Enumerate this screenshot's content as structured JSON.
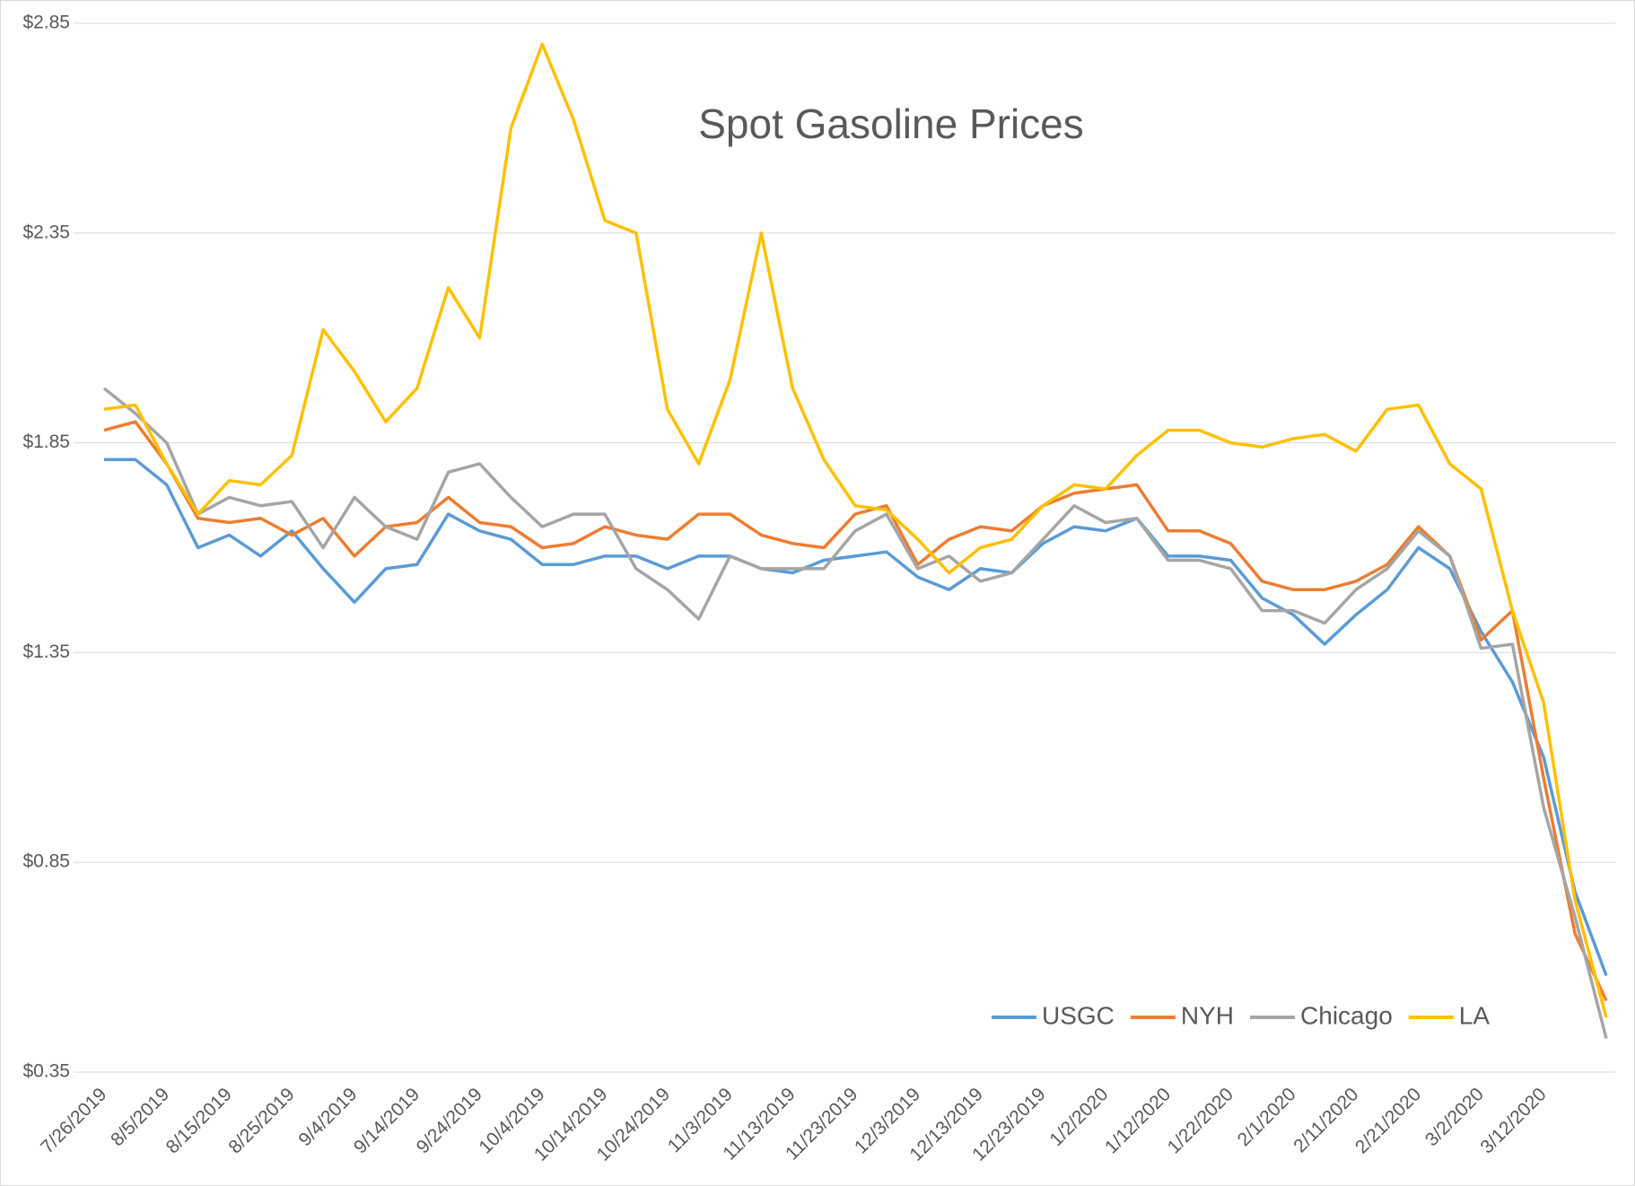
{
  "chart_data": {
    "type": "line",
    "title": "Spot Gasoline Prices",
    "categories": [
      "7/26/2019",
      null,
      "8/5/2019",
      null,
      "8/15/2019",
      null,
      "8/25/2019",
      null,
      "9/4/2019",
      null,
      "9/14/2019",
      null,
      "9/24/2019",
      null,
      "10/4/2019",
      null,
      "10/14/2019",
      null,
      "10/24/2019",
      null,
      "11/3/2019",
      null,
      "11/13/2019",
      null,
      "11/23/2019",
      null,
      "12/3/2019",
      null,
      "12/13/2019",
      null,
      "12/23/2019",
      null,
      "1/2/2020",
      null,
      "1/12/2020",
      null,
      "1/22/2020",
      null,
      "2/1/2020",
      null,
      "2/11/2020",
      null,
      "2/21/2020",
      null,
      "3/2/2020",
      null,
      "3/12/2020",
      null,
      null
    ],
    "series": [
      {
        "name": "USGC",
        "color": "#5b9bd5",
        "values": [
          1.81,
          1.81,
          1.75,
          1.6,
          1.63,
          1.58,
          1.64,
          1.55,
          1.47,
          1.55,
          1.56,
          1.68,
          1.64,
          1.62,
          1.56,
          1.56,
          1.58,
          1.58,
          1.55,
          1.58,
          1.58,
          1.55,
          1.54,
          1.57,
          1.58,
          1.59,
          1.53,
          1.5,
          1.55,
          1.54,
          1.61,
          1.65,
          1.64,
          1.67,
          1.58,
          1.58,
          1.57,
          1.48,
          1.44,
          1.37,
          1.44,
          1.5,
          1.6,
          1.55,
          1.4,
          1.28,
          1.1,
          0.78,
          0.58
        ]
      },
      {
        "name": "NYH",
        "color": "#ed7d31",
        "values": [
          1.88,
          1.9,
          1.8,
          1.67,
          1.66,
          1.67,
          1.63,
          1.67,
          1.58,
          1.65,
          1.66,
          1.72,
          1.66,
          1.65,
          1.6,
          1.61,
          1.65,
          1.63,
          1.62,
          1.68,
          1.68,
          1.63,
          1.61,
          1.6,
          1.68,
          1.7,
          1.56,
          1.62,
          1.65,
          1.64,
          1.7,
          1.73,
          1.74,
          1.75,
          1.64,
          1.64,
          1.61,
          1.52,
          1.5,
          1.5,
          1.52,
          1.56,
          1.65,
          1.58,
          1.38,
          1.45,
          1.05,
          0.68,
          0.52
        ]
      },
      {
        "name": "Chicago",
        "color": "#a5a5a5",
        "values": [
          1.98,
          1.92,
          1.85,
          1.68,
          1.72,
          1.7,
          1.71,
          1.6,
          1.72,
          1.65,
          1.62,
          1.78,
          1.8,
          1.72,
          1.65,
          1.68,
          1.68,
          1.55,
          1.5,
          1.43,
          1.58,
          1.55,
          1.55,
          1.55,
          1.64,
          1.68,
          1.55,
          1.58,
          1.52,
          1.54,
          1.62,
          1.7,
          1.66,
          1.67,
          1.57,
          1.57,
          1.55,
          1.45,
          1.45,
          1.42,
          1.5,
          1.55,
          1.64,
          1.58,
          1.36,
          1.37,
          0.98,
          0.72,
          0.43
        ]
      },
      {
        "name": "LA",
        "color": "#ffc000",
        "values": [
          1.93,
          1.94,
          1.8,
          1.68,
          1.76,
          1.75,
          1.82,
          2.12,
          2.02,
          1.9,
          1.98,
          2.22,
          2.1,
          2.6,
          2.8,
          2.62,
          2.38,
          2.35,
          1.93,
          1.8,
          2.0,
          2.35,
          1.98,
          1.81,
          1.7,
          1.69,
          1.62,
          1.54,
          1.6,
          1.62,
          1.7,
          1.75,
          1.74,
          1.82,
          1.88,
          1.88,
          1.85,
          1.84,
          1.86,
          1.87,
          1.83,
          1.93,
          1.94,
          1.8,
          1.74,
          1.45,
          1.23,
          0.76,
          0.48
        ]
      }
    ],
    "ylim": [
      0.35,
      2.85
    ],
    "yticks": [
      {
        "value": 0.35,
        "label": "$0.35"
      },
      {
        "value": 0.85,
        "label": "$0.85"
      },
      {
        "value": 1.35,
        "label": "$1.35"
      },
      {
        "value": 1.85,
        "label": "$1.85"
      },
      {
        "value": 2.35,
        "label": "$2.35"
      },
      {
        "value": 2.85,
        "label": "$2.85"
      }
    ],
    "grid": true,
    "legend": "bottom-right"
  }
}
